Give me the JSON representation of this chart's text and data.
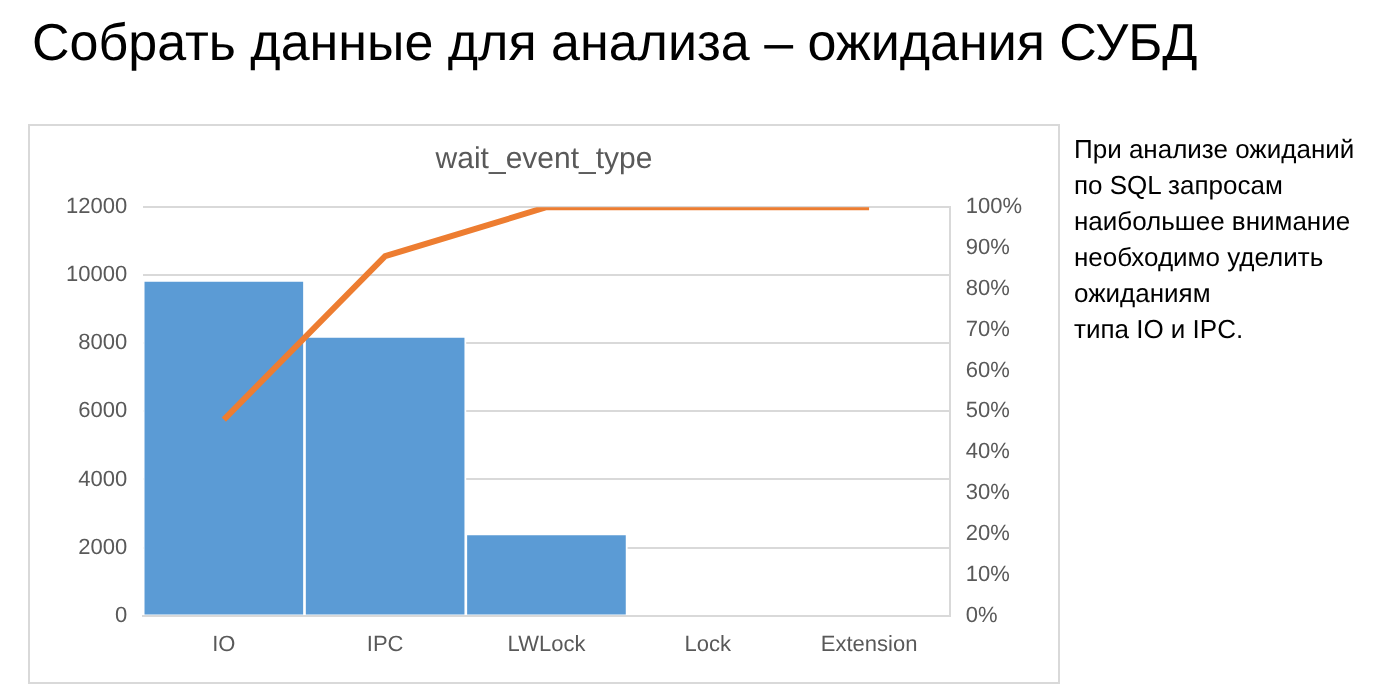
{
  "chart_data": {
    "type": "bar",
    "title": "Собрать данные для анализа – ожидания СУБД",
    "subtitle": "wait_event_type",
    "annotations": [
      "При анализе ожиданий\nпо SQL запросам\nнаибольшее внимание\nнеобходимо уделить\nожиданиям\nтипа IO и IPC."
    ],
    "categories": [
      "IO",
      "IPC",
      "LWLock",
      "Lock",
      "Extension"
    ],
    "series": [
      {
        "color": "#5b9bd5",
        "values": [
          9850,
          8200,
          2400,
          0,
          0
        ]
      },
      {
        "type": "line",
        "color": "#ed7d31",
        "axis": "y2",
        "marker": "none",
        "values": [
          48,
          88,
          100,
          100,
          100
        ]
      }
    ],
    "ylim": [
      0,
      12000
    ],
    "yticks": [
      0,
      2000,
      4000,
      6000,
      8000,
      10000,
      12000
    ],
    "y2lim": [
      0,
      100
    ],
    "y2ticks": [
      {
        "value": 0,
        "label": "0%"
      },
      {
        "value": 10,
        "label": "10%"
      },
      {
        "value": 20,
        "label": "20%"
      },
      {
        "value": 30,
        "label": "30%"
      },
      {
        "value": 40,
        "label": "40%"
      },
      {
        "value": 50,
        "label": "50%"
      },
      {
        "value": 60,
        "label": "60%"
      },
      {
        "value": 70,
        "label": "70%"
      },
      {
        "value": 80,
        "label": "80%"
      },
      {
        "value": 90,
        "label": "90%"
      },
      {
        "value": 100,
        "label": "100%"
      }
    ],
    "grid": "y",
    "legend": false
  }
}
